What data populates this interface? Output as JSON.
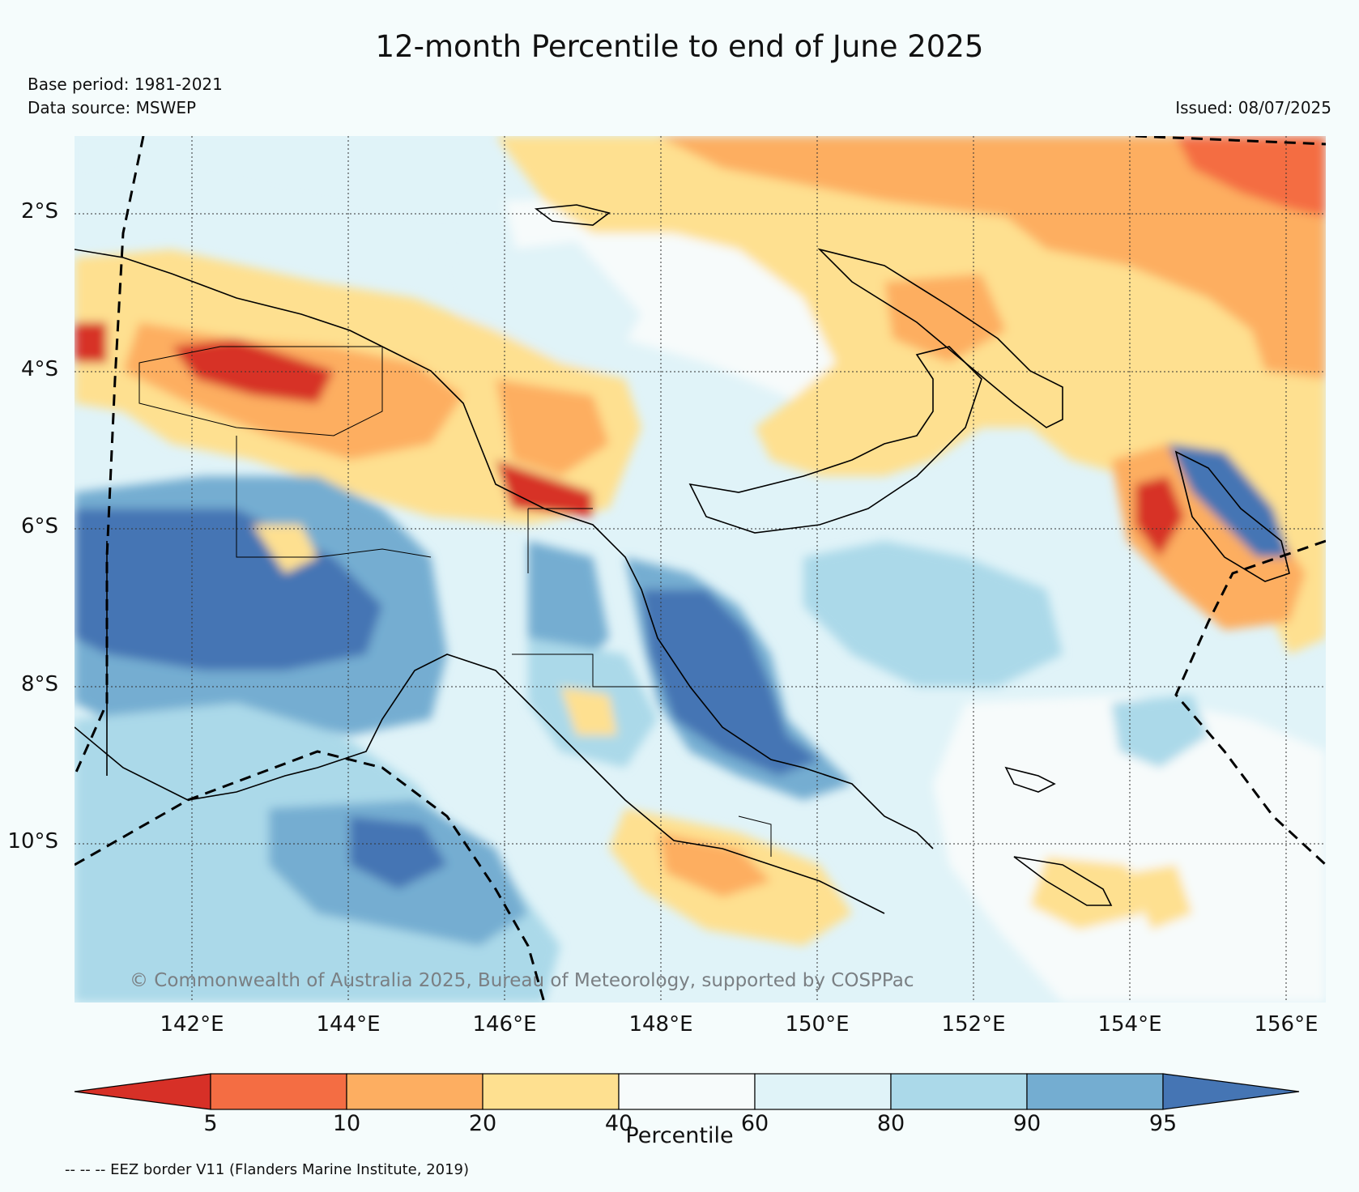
{
  "header": {
    "title": "12-month Percentile to end of June 2025",
    "base_period": "Base period: 1981-2021",
    "data_source": "Data source: MSWEP",
    "issued": "Issued: 08/07/2025"
  },
  "map": {
    "lat_labels": [
      "2°S",
      "4°S",
      "6°S",
      "8°S",
      "10°S"
    ],
    "lon_labels": [
      "142°E",
      "144°E",
      "146°E",
      "148°E",
      "150°E",
      "152°E",
      "154°E",
      "156°E"
    ],
    "copyright": "© Commonwealth of Australia 2025, Bureau of Meteorology, supported by COSPPac"
  },
  "colorbar": {
    "label": "Percentile",
    "ticks": [
      "5",
      "10",
      "20",
      "40",
      "60",
      "80",
      "90",
      "95"
    ],
    "colors": [
      "#d73027",
      "#f46d43",
      "#fdae61",
      "#fee090",
      "#f7fbfb",
      "#e0f3f8",
      "#abd9e9",
      "#74add1",
      "#4575b4"
    ]
  },
  "footnote": "-- -- -- EEZ border V11 (Flanders Marine Institute, 2019)"
}
